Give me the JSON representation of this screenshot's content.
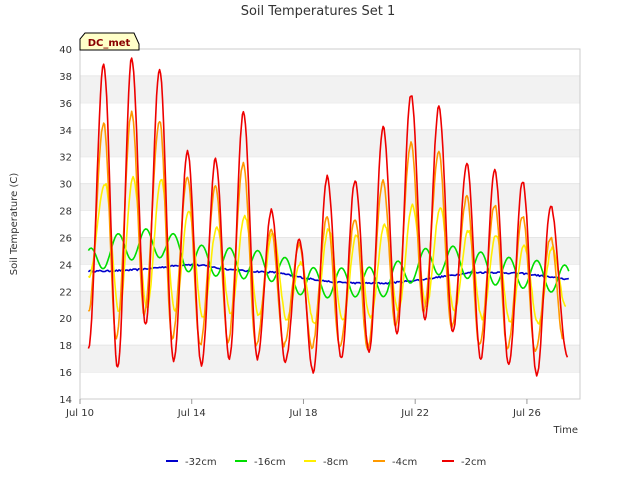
{
  "chart_data": {
    "type": "line",
    "title": "Soil Temperatures Set 1",
    "xlabel": "Time",
    "ylabel": "Soil Temperature (C)",
    "site_label": "DC_met",
    "ylim": [
      14,
      40
    ],
    "yticks": [
      14,
      16,
      18,
      20,
      22,
      24,
      26,
      28,
      30,
      32,
      34,
      36,
      38,
      40
    ],
    "xlim": [
      10,
      27.9
    ],
    "xticks": [
      {
        "value": 10,
        "label": "Jul 10"
      },
      {
        "value": 14,
        "label": "Jul 14"
      },
      {
        "value": 18,
        "label": "Jul 18"
      },
      {
        "value": 22,
        "label": "Jul 22"
      },
      {
        "value": 26,
        "label": "Jul 26"
      }
    ],
    "x_units": "day of July",
    "grid": "horizontal alternating bands",
    "legend_position": "bottom",
    "series": [
      {
        "name": "-32cm",
        "color": "#0000cc",
        "kind": "smooth",
        "x": [
          10.3,
          11,
          12,
          13,
          13.8,
          14.5,
          15,
          16,
          17,
          18,
          19,
          20,
          21,
          22,
          23,
          24,
          25,
          26,
          27,
          27.5
        ],
        "values": [
          23.5,
          23.5,
          23.6,
          23.8,
          24.0,
          23.9,
          23.7,
          23.5,
          23.4,
          23.0,
          22.7,
          22.6,
          22.6,
          22.8,
          23.1,
          23.4,
          23.4,
          23.3,
          23.0,
          22.9
        ]
      },
      {
        "name": "-16cm",
        "color": "#00dd00",
        "amp": 1.1,
        "x": [
          10.3,
          11,
          12,
          13,
          14,
          15,
          16,
          17,
          18,
          19,
          20,
          21,
          22,
          23,
          24,
          25,
          26,
          27,
          27.5
        ],
        "values": [
          24.0,
          25.0,
          25.5,
          25.6,
          24.4,
          24.2,
          24.0,
          23.8,
          22.7,
          22.6,
          22.7,
          22.7,
          23.9,
          24.4,
          24.0,
          23.5,
          23.3,
          23.0,
          22.8
        ]
      },
      {
        "name": "-8cm",
        "color": "#ffee00",
        "peaks": [
          [
            10.9,
            30.0
          ],
          [
            11.9,
            30.5
          ],
          [
            12.9,
            30.3
          ],
          [
            13.9,
            28.0
          ],
          [
            14.9,
            26.8
          ],
          [
            15.9,
            27.6
          ],
          [
            16.9,
            26.4
          ],
          [
            17.9,
            24.1
          ],
          [
            18.9,
            26.6
          ],
          [
            19.9,
            26.2
          ],
          [
            20.9,
            26.9
          ],
          [
            21.9,
            28.4
          ],
          [
            22.9,
            28.2
          ],
          [
            23.9,
            26.5
          ],
          [
            24.9,
            26.2
          ],
          [
            25.9,
            25.4
          ],
          [
            26.9,
            25.2
          ]
        ],
        "troughs": [
          [
            10.3,
            23.0
          ],
          [
            11.4,
            20.5
          ],
          [
            12.4,
            20.8
          ],
          [
            13.4,
            20.5
          ],
          [
            14.4,
            20.1
          ],
          [
            15.4,
            20.3
          ],
          [
            16.4,
            20.2
          ],
          [
            17.4,
            19.9
          ],
          [
            18.4,
            19.6
          ],
          [
            19.4,
            19.8
          ],
          [
            20.4,
            20.0
          ],
          [
            21.4,
            20.6
          ],
          [
            22.4,
            20.9
          ],
          [
            23.4,
            20.5
          ],
          [
            24.4,
            20.0
          ],
          [
            25.4,
            19.7
          ],
          [
            26.4,
            19.6
          ],
          [
            27.4,
            20.9
          ]
        ]
      },
      {
        "name": "-4cm",
        "color": "#ff9900",
        "peaks": [
          [
            10.85,
            34.5
          ],
          [
            11.85,
            35.3
          ],
          [
            12.85,
            34.7
          ],
          [
            13.85,
            30.5
          ],
          [
            14.85,
            29.8
          ],
          [
            15.85,
            31.5
          ],
          [
            16.85,
            26.5
          ],
          [
            17.85,
            25.5
          ],
          [
            18.85,
            27.5
          ],
          [
            19.85,
            27.4
          ],
          [
            20.85,
            30.2
          ],
          [
            21.85,
            33.0
          ],
          [
            22.85,
            32.3
          ],
          [
            23.85,
            29.0
          ],
          [
            24.85,
            28.4
          ],
          [
            25.85,
            27.6
          ],
          [
            26.85,
            26.0
          ]
        ],
        "troughs": [
          [
            10.3,
            20.4
          ],
          [
            11.3,
            18.5
          ],
          [
            12.3,
            20.3
          ],
          [
            13.3,
            18.5
          ],
          [
            14.3,
            18.0
          ],
          [
            15.3,
            18.3
          ],
          [
            16.3,
            18.0
          ],
          [
            17.3,
            18.0
          ],
          [
            18.3,
            17.8
          ],
          [
            19.3,
            17.8
          ],
          [
            20.3,
            17.8
          ],
          [
            21.3,
            19.4
          ],
          [
            22.3,
            20.5
          ],
          [
            23.3,
            19.3
          ],
          [
            24.3,
            18.0
          ],
          [
            25.3,
            17.8
          ],
          [
            26.3,
            17.5
          ],
          [
            27.3,
            18.5
          ]
        ]
      },
      {
        "name": "-2cm",
        "color": "#ee0000",
        "peaks": [
          [
            10.85,
            38.8
          ],
          [
            11.85,
            39.3
          ],
          [
            12.85,
            38.5
          ],
          [
            13.85,
            32.4
          ],
          [
            14.85,
            31.8
          ],
          [
            15.85,
            35.3
          ],
          [
            16.85,
            28.0
          ],
          [
            17.85,
            25.8
          ],
          [
            18.85,
            30.5
          ],
          [
            19.85,
            30.2
          ],
          [
            20.85,
            34.2
          ],
          [
            21.85,
            36.6
          ],
          [
            22.85,
            35.7
          ],
          [
            23.85,
            31.5
          ],
          [
            24.85,
            31.0
          ],
          [
            25.85,
            30.2
          ],
          [
            26.85,
            28.3
          ]
        ],
        "troughs": [
          [
            10.3,
            17.8
          ],
          [
            11.35,
            16.3
          ],
          [
            12.35,
            19.5
          ],
          [
            13.35,
            16.8
          ],
          [
            14.35,
            16.5
          ],
          [
            15.35,
            17.0
          ],
          [
            16.35,
            17.0
          ],
          [
            17.35,
            16.8
          ],
          [
            18.35,
            16.0
          ],
          [
            19.35,
            17.0
          ],
          [
            20.35,
            17.5
          ],
          [
            21.35,
            18.9
          ],
          [
            22.35,
            20.0
          ],
          [
            23.35,
            19.0
          ],
          [
            24.35,
            17.0
          ],
          [
            25.35,
            16.5
          ],
          [
            26.35,
            15.8
          ],
          [
            27.45,
            17.1
          ]
        ]
      }
    ]
  }
}
